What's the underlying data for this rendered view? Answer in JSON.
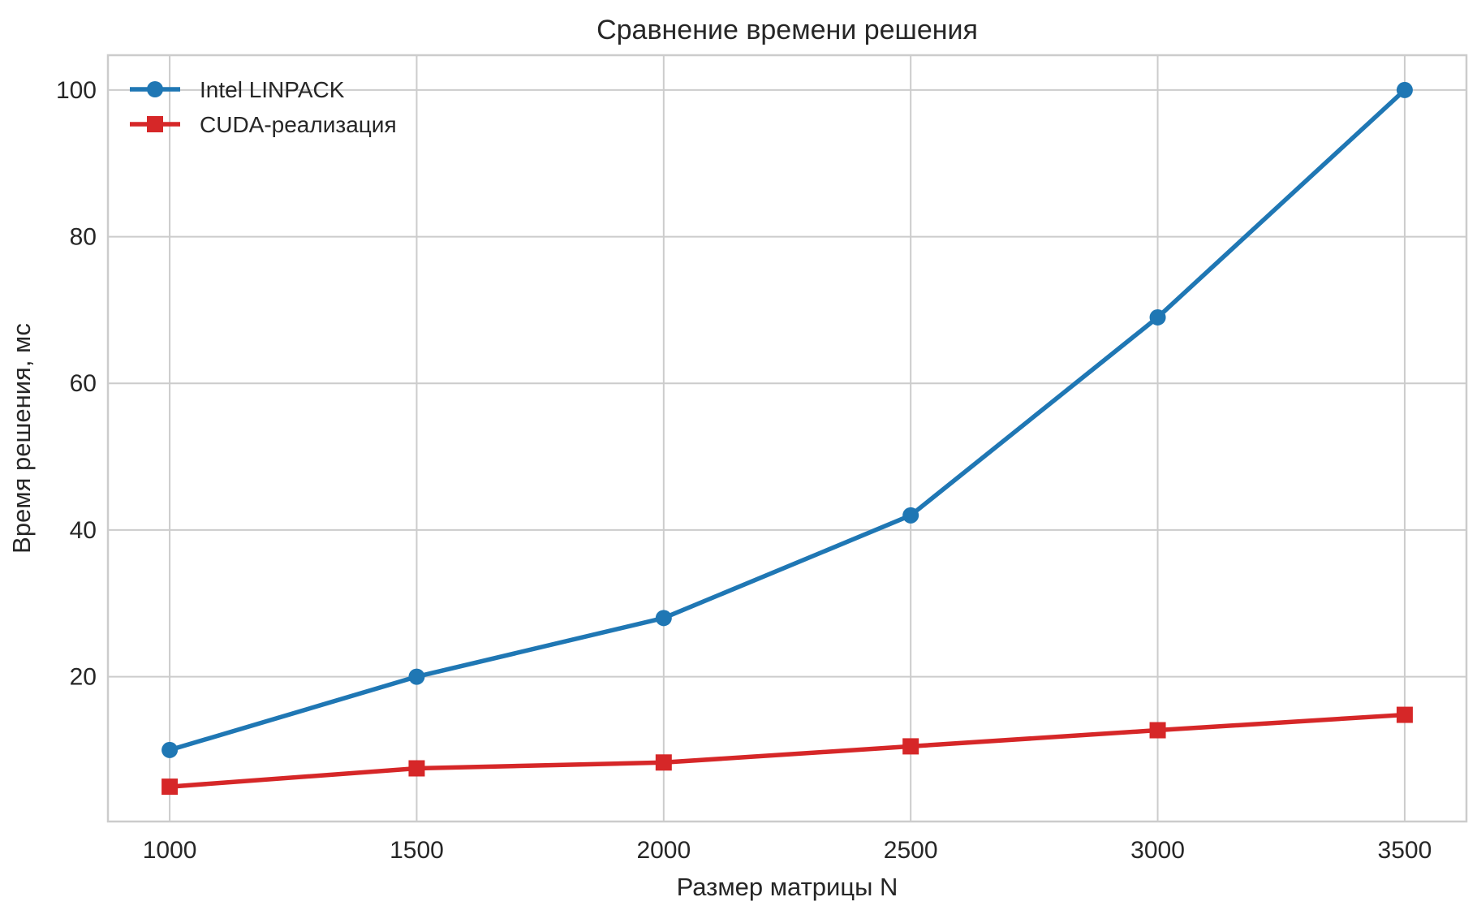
{
  "chart_data": {
    "type": "line",
    "title": "Сравнение времени решения",
    "xlabel": "Размер матрицы N",
    "ylabel": "Время решения, мс",
    "x": [
      1000,
      1500,
      2000,
      2500,
      3000,
      3500
    ],
    "xticks": [
      1000,
      1500,
      2000,
      2500,
      3000,
      3500
    ],
    "yticks": [
      20,
      40,
      60,
      80,
      100
    ],
    "xlim": [
      875,
      3625
    ],
    "ylim": [
      0.25,
      104.75
    ],
    "grid": true,
    "legend_position": "top-left",
    "series": [
      {
        "name": "Intel LINPACK",
        "values": [
          10,
          20,
          28,
          42,
          69,
          100
        ],
        "color": "#1f77b4",
        "marker": "circle"
      },
      {
        "name": "CUDA-реализация",
        "values": [
          5,
          7.5,
          8.3,
          10.5,
          12.7,
          14.8
        ],
        "color": "#d62728",
        "marker": "square"
      }
    ]
  }
}
